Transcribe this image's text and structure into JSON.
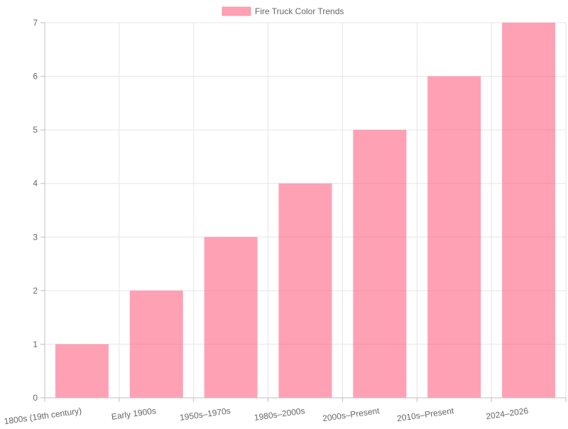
{
  "chart_data": {
    "type": "bar",
    "categories": [
      "1800s (19th century)",
      "Early 1900s",
      "1950s–1970s",
      "1980s–2000s",
      "2000s–Present",
      "2010s–Present",
      "2024–2026"
    ],
    "series": [
      {
        "name": "Fire Truck Color Trends",
        "values": [
          1,
          2,
          3,
          4,
          5,
          6,
          7
        ],
        "color": "#ff6384"
      }
    ],
    "ylim": [
      0,
      7
    ],
    "yticks": [
      0,
      1,
      2,
      3,
      4,
      5,
      6,
      7
    ],
    "grid": true,
    "legend_position": "top"
  }
}
